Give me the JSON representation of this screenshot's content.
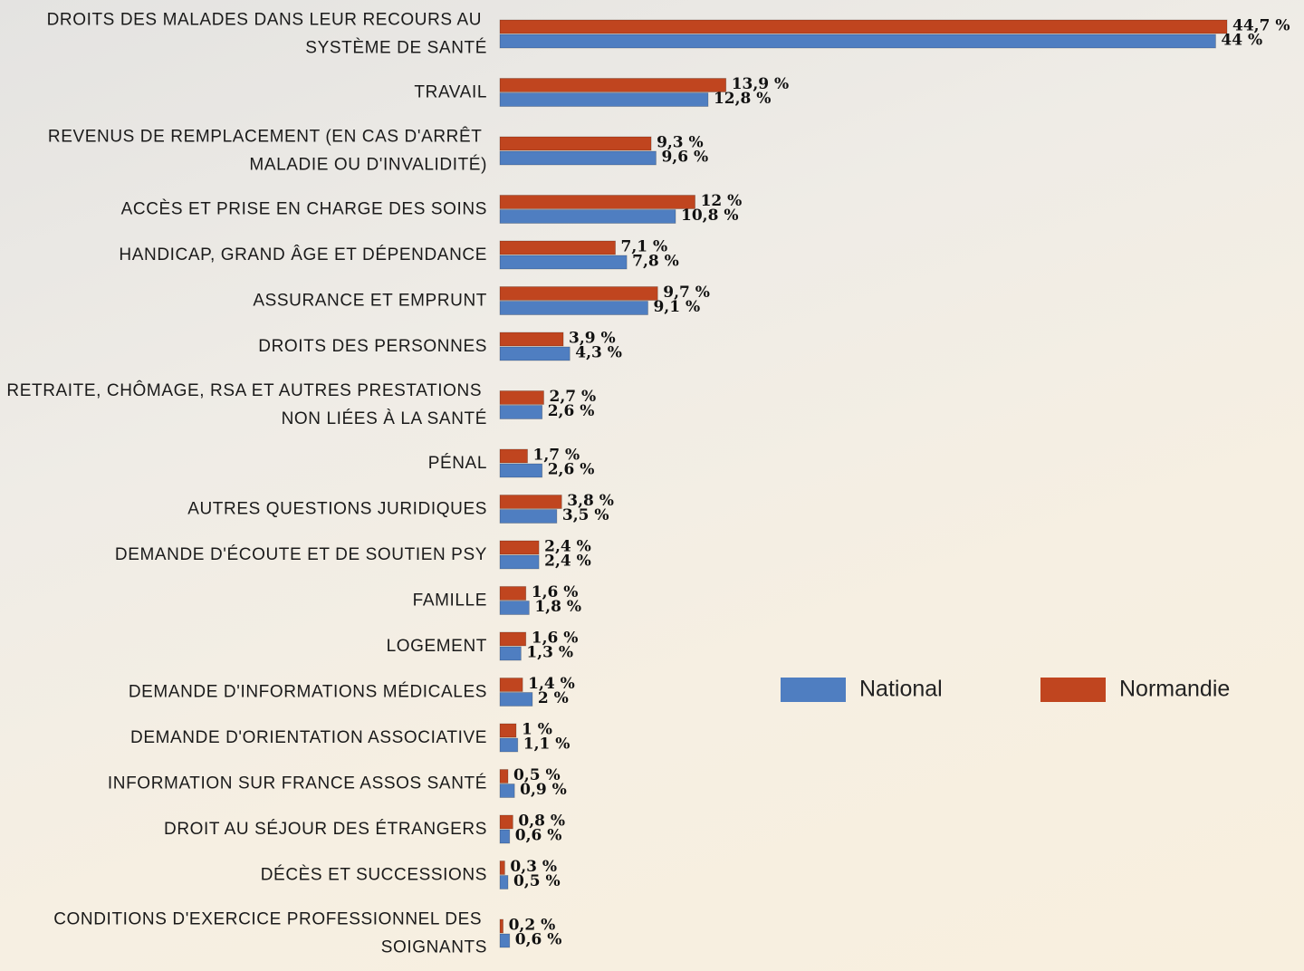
{
  "chart_data": {
    "type": "bar",
    "orientation": "horizontal",
    "categories": [
      "DROITS DES MALADES DANS LEUR RECOURS AU SYSTÈME DE SANTÉ",
      "TRAVAIL",
      "REVENUS DE REMPLACEMENT (EN CAS D'ARRÊT MALADIE OU D'INVALIDITÉ)",
      "ACCÈS ET PRISE EN CHARGE DES SOINS",
      "HANDICAP, GRAND ÂGE ET DÉPENDANCE",
      "ASSURANCE ET EMPRUNT",
      "DROITS DES PERSONNES",
      "RETRAITE, CHÔMAGE, RSA ET AUTRES PRESTATIONS NON LIÉES À LA SANTÉ",
      "PÉNAL",
      "AUTRES QUESTIONS JURIDIQUES",
      "DEMANDE D'ÉCOUTE ET DE SOUTIEN PSY",
      "FAMILLE",
      "LOGEMENT",
      "DEMANDE D'INFORMATIONS MÉDICALES",
      "DEMANDE D'ORIENTATION ASSOCIATIVE",
      "INFORMATION SUR FRANCE ASSOS SANTÉ",
      "DROIT AU SÉJOUR DES ÉTRANGERS",
      "DÉCÈS ET SUCCESSIONS",
      "CONDITIONS D'EXERCICE PROFESSIONNEL DES SOIGNANTS"
    ],
    "series": [
      {
        "name": "National",
        "color": "#4f7ec1",
        "values": [
          44,
          12.8,
          9.6,
          10.8,
          7.8,
          9.1,
          4.3,
          2.6,
          2.6,
          3.5,
          2.4,
          1.8,
          1.3,
          2,
          1.1,
          0.9,
          0.6,
          0.5,
          0.6
        ],
        "value_labels": [
          "44 %",
          "12,8 %",
          "9,6 %",
          "10,8 %",
          "7,8 %",
          "9,1 %",
          "4,3 %",
          "2,6 %",
          "2,6 %",
          "3,5 %",
          "2,4 %",
          "1,8 %",
          "1,3 %",
          "2 %",
          "1,1 %",
          "0,9 %",
          "0,6 %",
          "0,5 %",
          "0,6 %"
        ]
      },
      {
        "name": "Normandie",
        "color": "#c0451f",
        "values": [
          44.7,
          13.9,
          9.3,
          12,
          7.1,
          9.7,
          3.9,
          2.7,
          1.7,
          3.8,
          2.4,
          1.6,
          1.6,
          1.4,
          1,
          0.5,
          0.8,
          0.3,
          0.2
        ],
        "value_labels": [
          "44,7 %",
          "13,9 %",
          "9,3 %",
          "12 %",
          "7,1 %",
          "9,7 %",
          "3,9 %",
          "2,7 %",
          "1,7 %",
          "3,8 %",
          "2,4 %",
          "1,6 %",
          "1,6 %",
          "1,4 %",
          "1 %",
          "0,5 %",
          "0,8 %",
          "0,3 %",
          "0,2 %"
        ]
      }
    ]
  }
}
